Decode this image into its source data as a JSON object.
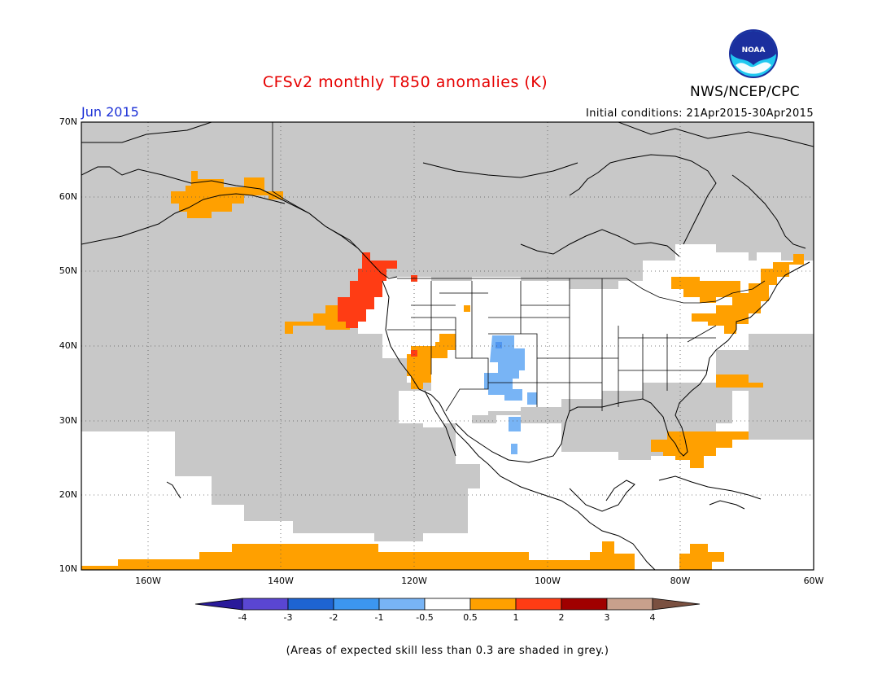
{
  "header": {
    "title": "CFSv2 monthly T850 anomalies (K)",
    "organization": "NWS/NCEP/CPC",
    "logo_text": "NOAA",
    "forecast_month": "Jun 2015",
    "initial_conditions": "Initial conditions: 21Apr2015-30Apr2015"
  },
  "map": {
    "latitude_labels": [
      "70N",
      "60N",
      "50N",
      "40N",
      "30N",
      "20N",
      "10N"
    ],
    "longitude_labels": [
      "160W",
      "140W",
      "120W",
      "100W",
      "80W",
      "60W"
    ],
    "colors": {
      "low_skill_grey": "#c8c8c8",
      "anom_0_5_to_1": "#ffa000",
      "anom_1_to_2": "#ff3c14",
      "anom_2_to_3": "#a00000",
      "anom_neg1_to_neg0_5": "#78b4f5",
      "anom_neg2_to_neg1": "#5096f0",
      "coastline": "#000000"
    }
  },
  "colorbar": {
    "tick_labels": [
      "-4",
      "-3",
      "-2",
      "-1",
      "-0.5",
      "0.5",
      "1",
      "2",
      "3",
      "4"
    ],
    "colors": [
      "#2a1a9a",
      "#5a46d2",
      "#1e64d2",
      "#3c96f0",
      "#78b4f5",
      "#ffffff",
      "#ffa000",
      "#ff3c14",
      "#a00000",
      "#c8a08c",
      "#7a5040"
    ]
  },
  "footer": {
    "note": "(Areas of expected skill less than 0.3 are shaded in grey.)"
  }
}
